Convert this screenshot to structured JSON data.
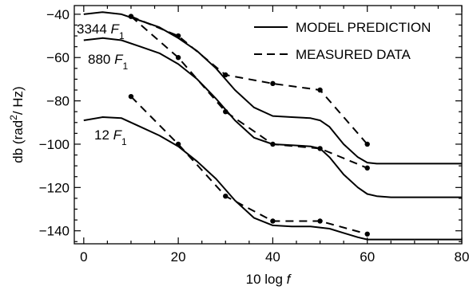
{
  "chart_data": {
    "type": "line",
    "title": "",
    "xlabel": "10 log f",
    "ylabel": "db (rad²/ Hz)",
    "xlim": [
      -2,
      80
    ],
    "ylim": [
      -146,
      -36
    ],
    "grid": false,
    "legend_placement": "top-right",
    "x_ticks": [
      0,
      20,
      40,
      60,
      80
    ],
    "y_ticks": [
      -40,
      -60,
      -80,
      -100,
      -120,
      -140
    ],
    "legend": [
      {
        "label": "MODEL PREDICTION",
        "style": "solid"
      },
      {
        "label": "MEASURED DATA",
        "style": "dashed"
      }
    ],
    "curve_labels": [
      {
        "prefix": "3344",
        "var": "F",
        "sub": "1"
      },
      {
        "prefix": "880",
        "var": "F",
        "sub": "1"
      },
      {
        "prefix": "12",
        "var": "F",
        "sub": "1"
      }
    ],
    "series": [
      {
        "style": "solid",
        "curve": "3344 F1",
        "x": [
          0,
          4,
          8,
          12,
          16,
          20,
          24,
          28,
          32,
          36,
          40,
          44,
          48,
          50,
          52,
          55,
          58,
          60,
          62,
          65,
          70,
          75,
          80
        ],
        "y": [
          -40,
          -39,
          -40,
          -43,
          -46,
          -51,
          -57,
          -65,
          -75,
          -83,
          -87,
          -87.5,
          -88,
          -89,
          -92,
          -100,
          -106,
          -108.5,
          -109,
          -109,
          -109,
          -109,
          -109
        ]
      },
      {
        "style": "solid",
        "curve": "880 F1",
        "x": [
          0,
          4,
          8,
          12,
          16,
          20,
          24,
          28,
          32,
          36,
          40,
          44,
          48,
          50,
          52,
          55,
          58,
          60,
          62,
          65,
          70,
          75,
          80
        ],
        "y": [
          -52,
          -51,
          -52,
          -55,
          -58,
          -63,
          -70,
          -79,
          -89,
          -97,
          -100,
          -100.5,
          -101,
          -102,
          -106,
          -114,
          -120,
          -123,
          -124,
          -124.5,
          -124.5,
          -124.5,
          -124.5
        ]
      },
      {
        "style": "solid",
        "curve": "12 F1",
        "x": [
          0,
          4,
          8,
          12,
          16,
          20,
          24,
          28,
          32,
          36,
          40,
          44,
          48,
          50,
          52,
          55,
          58,
          60,
          62,
          65,
          70,
          75,
          80
        ],
        "y": [
          -89,
          -87.5,
          -88,
          -92,
          -96,
          -101,
          -108,
          -116,
          -126,
          -134,
          -137.5,
          -138,
          -138,
          -138.5,
          -139,
          -141,
          -143,
          -144,
          -144,
          -144,
          -144,
          -144,
          -144
        ]
      },
      {
        "style": "dashed",
        "curve": "3344 F1",
        "x": [
          10,
          20,
          30,
          40,
          50,
          60
        ],
        "y": [
          -41,
          -50,
          -68,
          -72,
          -75,
          -100
        ]
      },
      {
        "style": "dashed",
        "curve": "880 F1",
        "x": [
          10,
          20,
          30,
          40,
          50,
          60
        ],
        "y": [
          -41,
          -60,
          -85,
          -100,
          -102,
          -111
        ]
      },
      {
        "style": "dashed",
        "curve": "12 F1",
        "x": [
          10,
          20,
          30,
          40,
          50,
          60
        ],
        "y": [
          -78,
          -100,
          -124,
          -135.5,
          -135.5,
          -141.5
        ]
      }
    ]
  }
}
